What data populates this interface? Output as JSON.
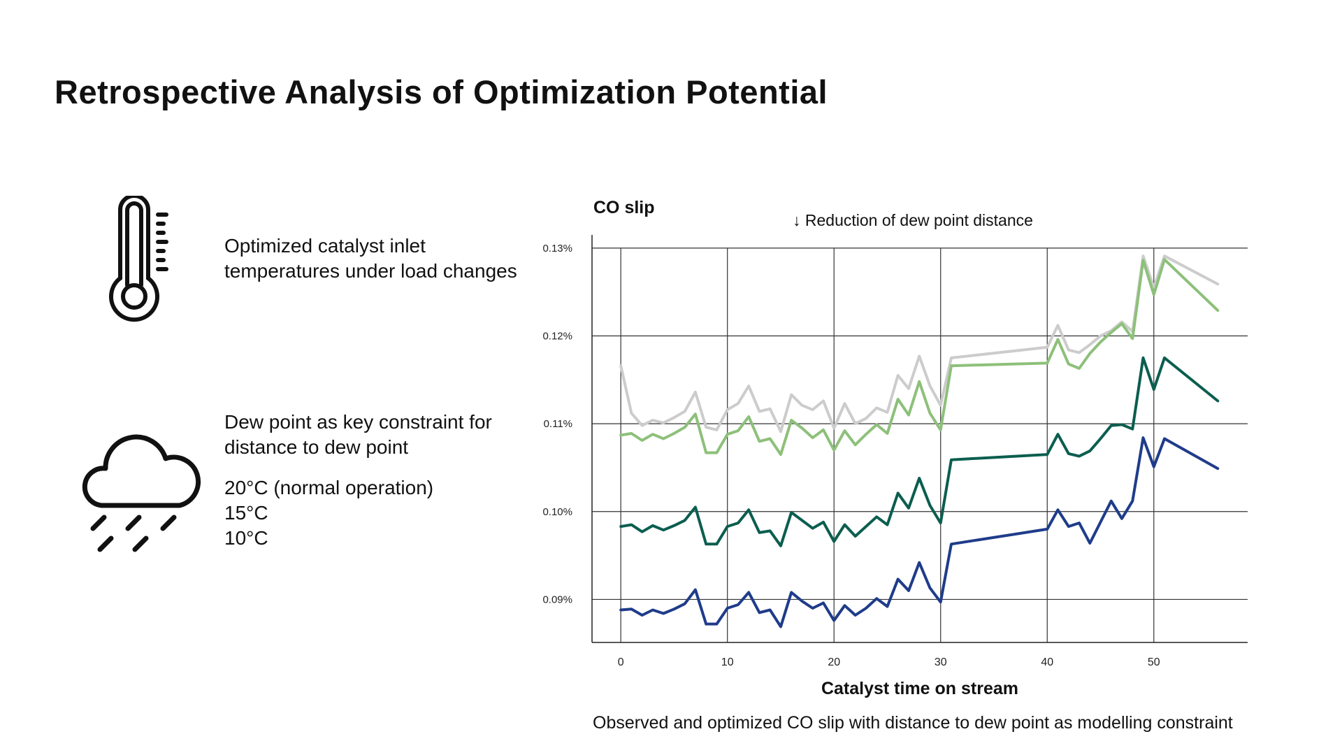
{
  "page": {
    "title": "Retrospective Analysis of Optimization Potential"
  },
  "notes": {
    "temperature_icon": "thermometer-icon",
    "temperature_lines": [
      "Optimized catalyst inlet",
      "temperatures under load changes"
    ],
    "dew_icon": "rain-cloud-icon",
    "dew_lines": [
      "Dew point as key constraint for",
      "distance to dew point"
    ],
    "dew_options": [
      "20°C (normal operation)",
      "15°C",
      "10°C"
    ]
  },
  "chart_data": {
    "type": "line",
    "title": "CO slip",
    "annotation": "↓ Reduction of dew point distance",
    "xlabel": "Catalyst time on stream",
    "caption": "Observed and optimized CO slip with distance to dew point as modelling constraint",
    "xticks": [
      0,
      10,
      20,
      30,
      40,
      50
    ],
    "yticks": [
      0.09,
      0.1,
      0.11,
      0.12,
      0.13
    ],
    "ytick_labels": [
      "0.09%",
      "0.10%",
      "0.11%",
      "0.12%",
      "0.13%"
    ],
    "xlim": [
      -2.7,
      58.8
    ],
    "ylim": [
      0.0851,
      0.1315
    ],
    "grid": true,
    "legend": "none",
    "x": [
      0,
      1,
      2,
      3,
      4,
      5,
      6,
      7,
      8,
      9,
      10,
      11,
      12,
      13,
      14,
      15,
      16,
      17,
      18,
      19,
      20,
      21,
      22,
      23,
      24,
      25,
      26,
      27,
      28,
      29,
      30,
      31,
      40,
      41,
      42,
      43,
      44,
      45,
      46,
      47,
      48,
      49,
      50,
      51,
      56
    ],
    "series": [
      {
        "color": "#cccccc",
        "values": [
          0.1166,
          0.1112,
          0.1098,
          0.1104,
          0.1101,
          0.1107,
          0.1114,
          0.1136,
          0.1096,
          0.1093,
          0.1116,
          0.1123,
          0.1143,
          0.1114,
          0.1117,
          0.1091,
          0.1133,
          0.1121,
          0.1116,
          0.1126,
          0.1095,
          0.1123,
          0.11,
          0.1106,
          0.1118,
          0.1113,
          0.1155,
          0.114,
          0.1177,
          0.1143,
          0.1121,
          0.1175,
          0.1187,
          0.1212,
          0.1184,
          0.1181,
          0.119,
          0.12,
          0.1206,
          0.1216,
          0.1205,
          0.1291,
          0.1255,
          0.1291,
          0.1259
        ]
      },
      {
        "color": "#8dc07a",
        "values": [
          0.1087,
          0.1089,
          0.1081,
          0.1088,
          0.1083,
          0.1089,
          0.1096,
          0.1111,
          0.1067,
          0.1067,
          0.1088,
          0.1092,
          0.1108,
          0.108,
          0.1083,
          0.1065,
          0.1104,
          0.1095,
          0.1084,
          0.1093,
          0.107,
          0.1092,
          0.1076,
          0.1088,
          0.1099,
          0.1089,
          0.1128,
          0.111,
          0.1148,
          0.1112,
          0.1093,
          0.1166,
          0.1169,
          0.1196,
          0.1168,
          0.1163,
          0.118,
          0.1193,
          0.1204,
          0.1214,
          0.1197,
          0.1286,
          0.1247,
          0.1287,
          0.1229
        ]
      },
      {
        "color": "#0b5e4f",
        "values": [
          0.0983,
          0.0985,
          0.0977,
          0.0984,
          0.0979,
          0.0984,
          0.099,
          0.1005,
          0.0963,
          0.0963,
          0.0983,
          0.0987,
          0.1002,
          0.0976,
          0.0978,
          0.0961,
          0.0999,
          0.099,
          0.0981,
          0.0988,
          0.0966,
          0.0985,
          0.0972,
          0.0983,
          0.0994,
          0.0985,
          0.1021,
          0.1004,
          0.1038,
          0.1007,
          0.0987,
          0.1059,
          0.1065,
          0.1088,
          0.1066,
          0.1063,
          0.1069,
          0.1083,
          0.1098,
          0.1099,
          0.1094,
          0.1175,
          0.1139,
          0.1175,
          0.1126
        ]
      },
      {
        "color": "#1f3c8a",
        "values": [
          0.0888,
          0.0889,
          0.0882,
          0.0888,
          0.0884,
          0.0889,
          0.0895,
          0.0911,
          0.0872,
          0.0872,
          0.089,
          0.0894,
          0.0908,
          0.0885,
          0.0888,
          0.0869,
          0.0908,
          0.0898,
          0.089,
          0.0896,
          0.0876,
          0.0893,
          0.0882,
          0.089,
          0.0901,
          0.0892,
          0.0923,
          0.091,
          0.0942,
          0.0913,
          0.0897,
          0.0963,
          0.098,
          0.1002,
          0.0983,
          0.0987,
          0.0964,
          0.0988,
          0.1012,
          0.0992,
          0.1012,
          0.1084,
          0.1051,
          0.1083,
          0.1049
        ]
      }
    ]
  }
}
